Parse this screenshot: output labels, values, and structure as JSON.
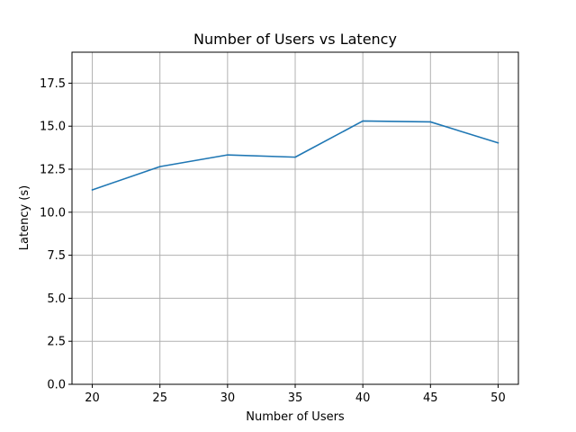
{
  "chart_data": {
    "type": "line",
    "title": "Number of Users vs Latency",
    "xlabel": "Number of Users",
    "ylabel": "Latency (s)",
    "x": [
      20,
      25,
      30,
      35,
      40,
      45,
      50
    ],
    "series": [
      {
        "values": [
          11.3,
          12.65,
          13.33,
          13.2,
          15.3,
          15.25,
          14.03
        ],
        "color": "#1f77b4"
      }
    ],
    "xlim": [
      18.5,
      51.5
    ],
    "ylim": [
      0,
      19.3
    ],
    "xticks": [
      20,
      25,
      30,
      35,
      40,
      45,
      50
    ],
    "xtick_labels": [
      "20",
      "25",
      "30",
      "35",
      "40",
      "45",
      "50"
    ],
    "yticks": [
      0,
      2.5,
      5,
      7.5,
      10,
      12.5,
      15,
      17.5
    ],
    "ytick_labels": [
      "0.0",
      "2.5",
      "5.0",
      "7.5",
      "10.0",
      "12.5",
      "15.0",
      "17.5"
    ],
    "grid": true,
    "grid_color": "#b0b0b0",
    "axis_color": "#000000"
  }
}
